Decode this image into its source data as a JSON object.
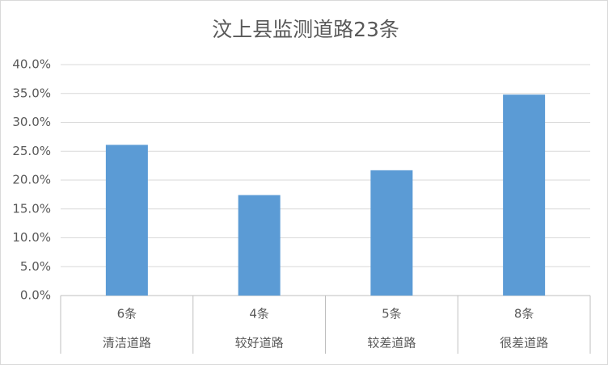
{
  "chart_data": {
    "type": "bar",
    "title": "汶上县监测道路23条",
    "category_counts": [
      "6条",
      "4条",
      "5条",
      "8条"
    ],
    "categories": [
      "清洁道路",
      "较好道路",
      "较差道路",
      "很差道路"
    ],
    "values": [
      26.1,
      17.4,
      21.7,
      34.8
    ],
    "color": "#5b9bd5",
    "ylim": [
      0,
      40
    ],
    "yticks": [
      {
        "value": 0,
        "label": "0.0%"
      },
      {
        "value": 5,
        "label": "5.0%"
      },
      {
        "value": 10,
        "label": "10.0%"
      },
      {
        "value": 15,
        "label": "15.0%"
      },
      {
        "value": 20,
        "label": "20.0%"
      },
      {
        "value": 25,
        "label": "25.0%"
      },
      {
        "value": 30,
        "label": "30.0%"
      },
      {
        "value": 35,
        "label": "35.0%"
      },
      {
        "value": 40,
        "label": "40.0%"
      }
    ],
    "grid": true
  }
}
